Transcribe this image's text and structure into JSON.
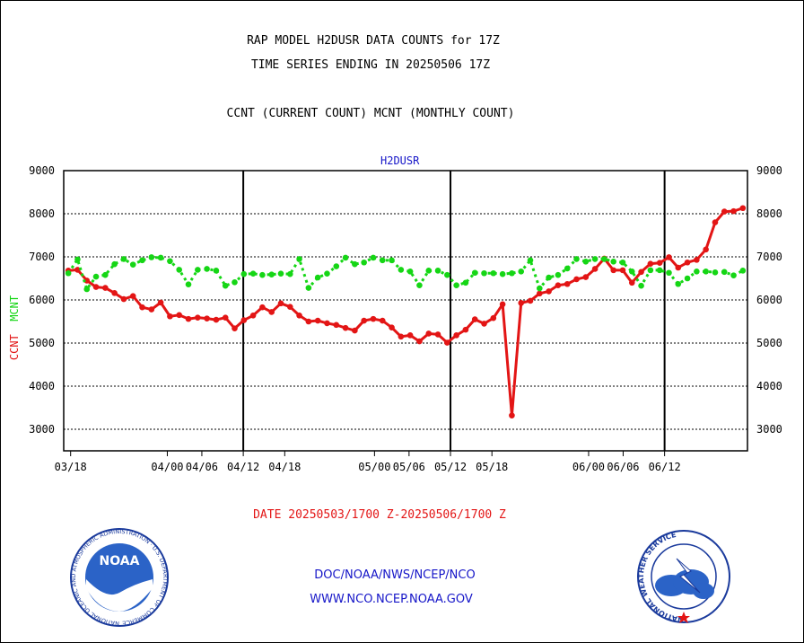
{
  "header": {
    "title_line1": "RAP MODEL H2DUSR DATA COUNTS for 17Z",
    "title_line2": "TIME SERIES ENDING IN 20250506 17Z",
    "title_line3": "CCNT (CURRENT COUNT) MCNT (MONTHLY COUNT)"
  },
  "footer": {
    "date_range": "DATE 20250503/1700 Z-20250506/1700 Z",
    "org_line": "DOC/NOAA/NWS/NCEP/NCO",
    "url_line": "WWW.NCO.NCEP.NOAA.GOV"
  },
  "logos": {
    "noaa": {
      "center_text": "NOAA",
      "ring_text": "NATIONAL OCEANIC AND ATMOSPHERIC ADMINISTRATION · U.S. DEPARTMENT OF COMMERCE"
    },
    "nws": {
      "ring_text": "NATIONAL WEATHER SERVICE"
    }
  },
  "colors": {
    "ccnt": "#e31515",
    "mcnt": "#15d615",
    "label_blue": "#1515c8",
    "grid": "#000000"
  },
  "chart_data": {
    "type": "line",
    "plot_label": "H2DUSR",
    "ylabel_left": [
      "CCNT",
      "MCNT"
    ],
    "ylim": [
      2500,
      9000
    ],
    "yticks": [
      3000,
      4000,
      5000,
      6000,
      7000,
      8000,
      9000
    ],
    "x_start": "03/17",
    "x_end": "06/24",
    "xticks": [
      "03/18",
      "04/00",
      "04/06",
      "04/12",
      "04/18",
      "05/00",
      "05/06",
      "05/12",
      "05/18",
      "06/00",
      "06/06",
      "06/12"
    ],
    "major_day_separators": [
      "04/12",
      "05/12",
      "06/12"
    ],
    "grid": true,
    "series": [
      {
        "name": "CCNT",
        "color": "#e31515",
        "values": [
          6680,
          6700,
          6450,
          6300,
          6280,
          6160,
          6020,
          6090,
          5830,
          5780,
          5940,
          5620,
          5650,
          5560,
          5590,
          5570,
          5540,
          5590,
          5340,
          5530,
          5640,
          5830,
          5720,
          5920,
          5840,
          5640,
          5500,
          5520,
          5460,
          5420,
          5350,
          5290,
          5520,
          5560,
          5520,
          5360,
          5150,
          5180,
          5040,
          5220,
          5200,
          5010,
          5180,
          5310,
          5550,
          5450,
          5580,
          5900,
          3320,
          5930,
          5980,
          6150,
          6200,
          6340,
          6370,
          6480,
          6530,
          6720,
          6960,
          6690,
          6690,
          6400,
          6650,
          6840,
          6860,
          6990,
          6750,
          6870,
          6930,
          7170,
          7800,
          8050,
          8060,
          8130
        ]
      },
      {
        "name": "MCNT",
        "color": "#15d615",
        "values": [
          6620,
          6940,
          6250,
          6540,
          6580,
          6830,
          6950,
          6820,
          6920,
          6990,
          6980,
          6900,
          6700,
          6360,
          6700,
          6720,
          6680,
          6330,
          6410,
          6600,
          6610,
          6580,
          6590,
          6610,
          6600,
          6950,
          6280,
          6520,
          6610,
          6780,
          6980,
          6830,
          6870,
          6980,
          6920,
          6920,
          6700,
          6660,
          6340,
          6680,
          6680,
          6580,
          6340,
          6400,
          6630,
          6620,
          6620,
          6600,
          6620,
          6660,
          6920,
          6270,
          6520,
          6580,
          6730,
          6950,
          6890,
          6950,
          6950,
          6890,
          6870,
          6660,
          6330,
          6690,
          6690,
          6630,
          6370,
          6500,
          6660,
          6660,
          6640,
          6650,
          6570,
          6680
        ]
      }
    ]
  }
}
